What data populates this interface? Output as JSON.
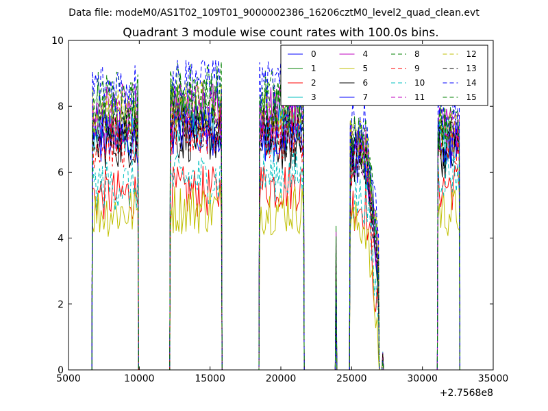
{
  "suptitle": "Data file: modeM0/AS1T02_109T01_9000002386_16206cztM0_level2_quad_clean.evt",
  "chart_data": {
    "type": "line",
    "title": "Quadrant 3 module wise count rates with 100.0s bins.",
    "xlabel": "",
    "ylabel": "",
    "x_offset_label": "+2.7568e8",
    "xlim": [
      5000,
      35000
    ],
    "ylim": [
      0,
      10
    ],
    "x_ticks": [
      5000,
      10000,
      15000,
      20000,
      25000,
      30000,
      35000
    ],
    "x_tick_labels": [
      "5000",
      "10000",
      "15000",
      "20000",
      "25000",
      "30000",
      "35000"
    ],
    "y_ticks": [
      0,
      2,
      4,
      6,
      8,
      10
    ],
    "y_tick_labels": [
      "0",
      "2",
      "4",
      "6",
      "8",
      "10"
    ],
    "grid": false,
    "legend_position": "top-right",
    "legend_columns": 4,
    "segments": [
      {
        "x_start": 6700,
        "x_end": 9900
      },
      {
        "x_start": 12200,
        "x_end": 15800
      },
      {
        "x_start": 18500,
        "x_end": 21600
      },
      {
        "x_start": 24900,
        "x_end": 26900
      },
      {
        "x_start": 31100,
        "x_end": 32600
      }
    ],
    "spikes": [
      {
        "x": 23900,
        "value": 4.5
      },
      {
        "x": 27200,
        "value": 0.6
      }
    ],
    "series": [
      {
        "name": "0",
        "color": "#0000ff",
        "dash": "solid",
        "levels": [
          7.3,
          7.7,
          7.5,
          6.8,
          7.0
        ]
      },
      {
        "name": "1",
        "color": "#008000",
        "dash": "solid",
        "levels": [
          7.6,
          7.9,
          7.8,
          6.6,
          7.1
        ]
      },
      {
        "name": "2",
        "color": "#ff0000",
        "dash": "solid",
        "levels": [
          5.3,
          5.4,
          5.6,
          5.0,
          5.6
        ]
      },
      {
        "name": "3",
        "color": "#00bfbf",
        "dash": "solid",
        "levels": [
          7.2,
          7.4,
          7.3,
          6.5,
          6.9
        ]
      },
      {
        "name": "4",
        "color": "#bf00bf",
        "dash": "solid",
        "levels": [
          7.9,
          8.0,
          7.9,
          6.8,
          7.3
        ]
      },
      {
        "name": "5",
        "color": "#bfbf00",
        "dash": "solid",
        "levels": [
          4.8,
          4.9,
          4.9,
          4.4,
          4.8
        ]
      },
      {
        "name": "6",
        "color": "#000000",
        "dash": "solid",
        "levels": [
          6.9,
          7.1,
          6.8,
          6.2,
          6.6
        ]
      },
      {
        "name": "7",
        "color": "#0000ff",
        "dash": "solid",
        "levels": [
          7.0,
          7.3,
          7.0,
          6.4,
          6.8
        ]
      },
      {
        "name": "8",
        "color": "#008000",
        "dash": "dashed",
        "levels": [
          8.3,
          8.6,
          8.4,
          7.2,
          7.6
        ]
      },
      {
        "name": "9",
        "color": "#ff0000",
        "dash": "dashed",
        "levels": [
          6.9,
          7.2,
          7.1,
          6.3,
          6.7
        ]
      },
      {
        "name": "10",
        "color": "#00bfbf",
        "dash": "dashed",
        "levels": [
          5.6,
          5.8,
          5.9,
          5.2,
          6.0
        ]
      },
      {
        "name": "11",
        "color": "#bf00bf",
        "dash": "dashed",
        "levels": [
          7.5,
          7.7,
          7.6,
          6.7,
          7.1
        ]
      },
      {
        "name": "12",
        "color": "#bfbf00",
        "dash": "dashed",
        "levels": [
          7.8,
          8.0,
          7.9,
          6.9,
          7.3
        ]
      },
      {
        "name": "13",
        "color": "#000000",
        "dash": "dashed",
        "levels": [
          7.2,
          7.4,
          7.2,
          6.5,
          6.9
        ]
      },
      {
        "name": "14",
        "color": "#0000ff",
        "dash": "dashed",
        "levels": [
          8.6,
          8.9,
          8.6,
          7.5,
          7.9
        ]
      },
      {
        "name": "15",
        "color": "#008000",
        "dash": "dashed",
        "levels": [
          8.0,
          8.2,
          8.1,
          7.0,
          7.4
        ]
      }
    ]
  }
}
